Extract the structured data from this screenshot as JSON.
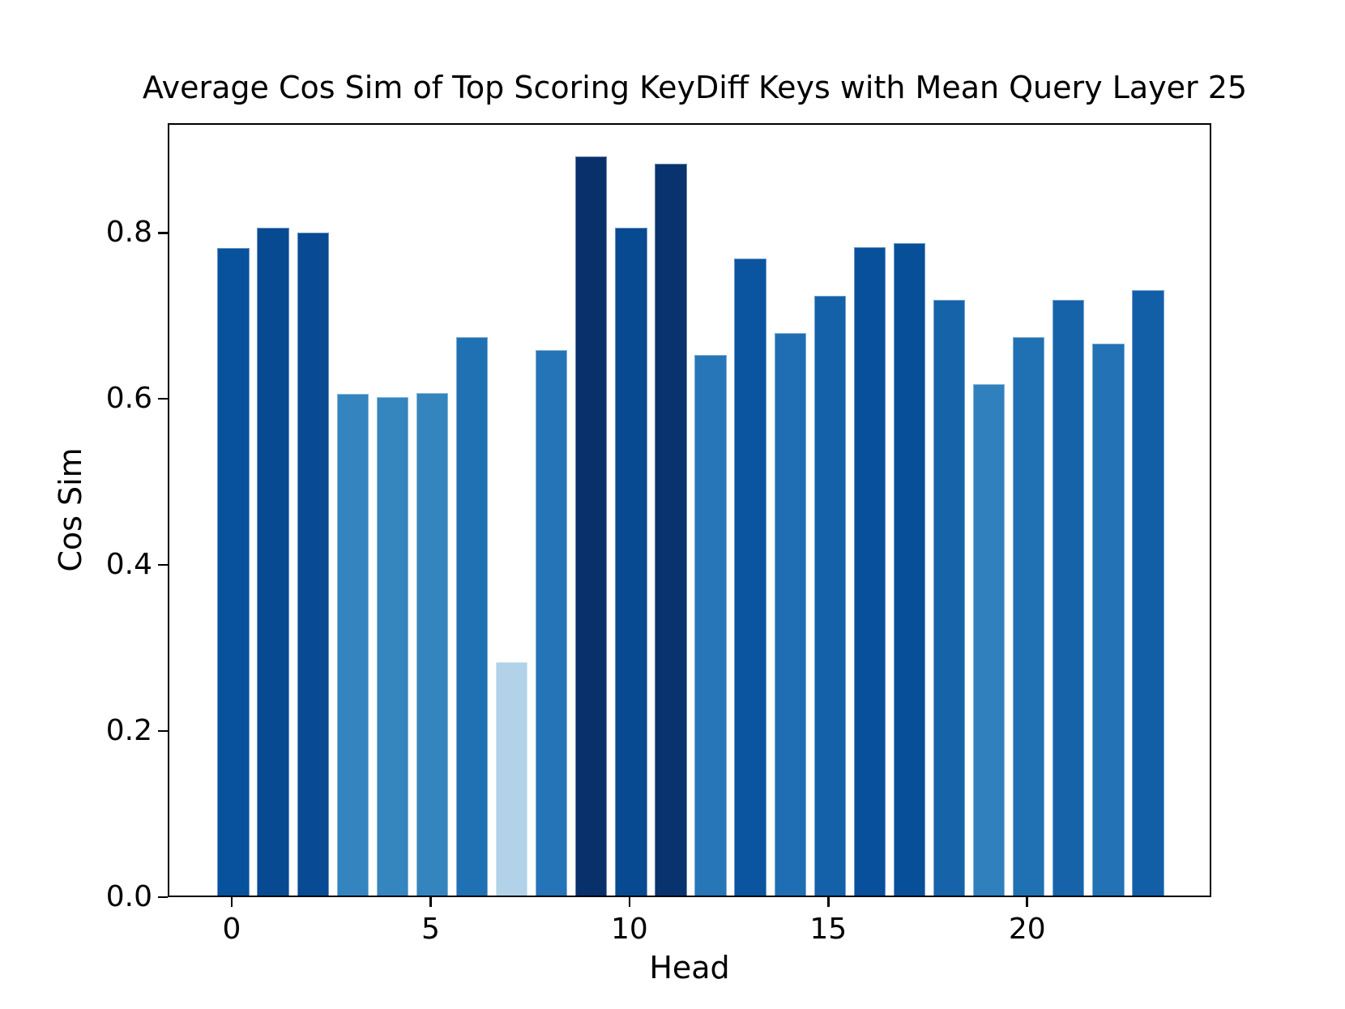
{
  "chart_data": {
    "type": "bar",
    "title": "Average Cos Sim of Top Scoring KeyDiff Keys with Mean Query Layer 25",
    "xlabel": "Head",
    "ylabel": "Cos Sim",
    "categories": [
      0,
      1,
      2,
      3,
      4,
      5,
      6,
      7,
      8,
      9,
      10,
      11,
      12,
      13,
      14,
      15,
      16,
      17,
      18,
      19,
      20,
      21,
      22,
      23
    ],
    "values": [
      0.78,
      0.804,
      0.798,
      0.604,
      0.6,
      0.605,
      0.672,
      0.281,
      0.657,
      0.89,
      0.804,
      0.881,
      0.651,
      0.767,
      0.677,
      0.722,
      0.781,
      0.786,
      0.717,
      0.616,
      0.672,
      0.717,
      0.665,
      0.729
    ],
    "bar_colors": [
      "#08519c",
      "#084a91",
      "#084b94",
      "#3484bf",
      "#3585bf",
      "#3484be",
      "#2070b4",
      "#b1d2e8",
      "#2474b7",
      "#08306b",
      "#084a91",
      "#08336f",
      "#2676b8",
      "#0b549f",
      "#1f6eb3",
      "#1561a9",
      "#08509b",
      "#084f99",
      "#1663aa",
      "#3080bd",
      "#2070b4",
      "#1663aa",
      "#2272b5",
      "#135fa7"
    ],
    "xticks": {
      "positions": [
        0,
        5,
        10,
        15,
        20
      ],
      "labels": [
        "0",
        "5",
        "10",
        "15",
        "20"
      ]
    },
    "yticks": {
      "values": [
        0.0,
        0.2,
        0.4,
        0.6,
        0.8
      ],
      "labels": [
        "0.0",
        "0.2",
        "0.4",
        "0.6",
        "0.8"
      ]
    },
    "ylim": [
      0,
      0.932
    ],
    "grid": false,
    "legend": null,
    "axis_color": "#000000",
    "background_color": "#ffffff"
  }
}
